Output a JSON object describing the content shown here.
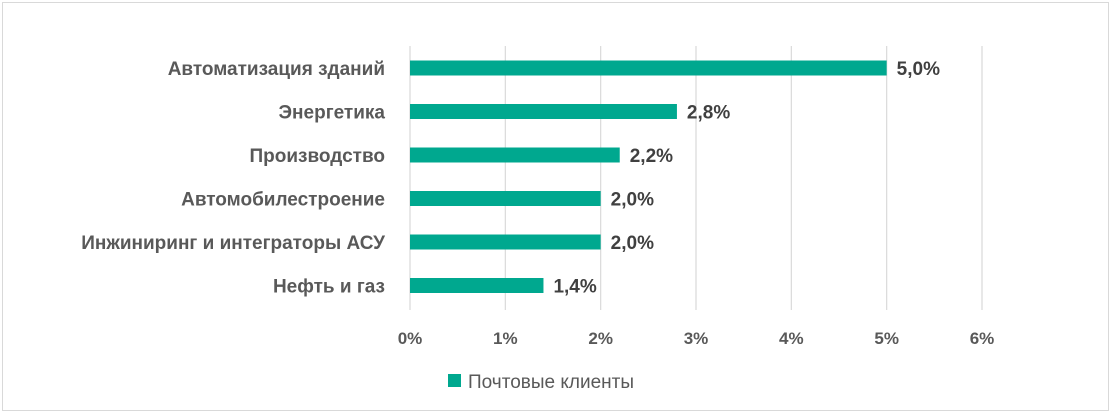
{
  "chart_data": {
    "type": "bar",
    "orientation": "horizontal",
    "categories": [
      "Автоматизация зданий",
      "Энергетика",
      "Производство",
      "Автомобилестроение",
      "Инжиниринг и интеграторы АСУ",
      "Нефть и газ"
    ],
    "series": [
      {
        "name": "Почтовые клиенты",
        "values": [
          5.0,
          2.8,
          2.2,
          2.0,
          2.0,
          1.4
        ],
        "value_labels": [
          "5,0%",
          "2,8%",
          "2,2%",
          "2,0%",
          "2,0%",
          "1,4%"
        ],
        "color": "#00a88f"
      }
    ],
    "xlim": [
      0,
      6
    ],
    "x_ticks": [
      0,
      1,
      2,
      3,
      4,
      5,
      6
    ],
    "x_tick_labels": [
      "0%",
      "1%",
      "2%",
      "3%",
      "4%",
      "5%",
      "6%"
    ],
    "grid": true,
    "legend": "bottom",
    "title": "",
    "xlabel": "",
    "ylabel": ""
  }
}
